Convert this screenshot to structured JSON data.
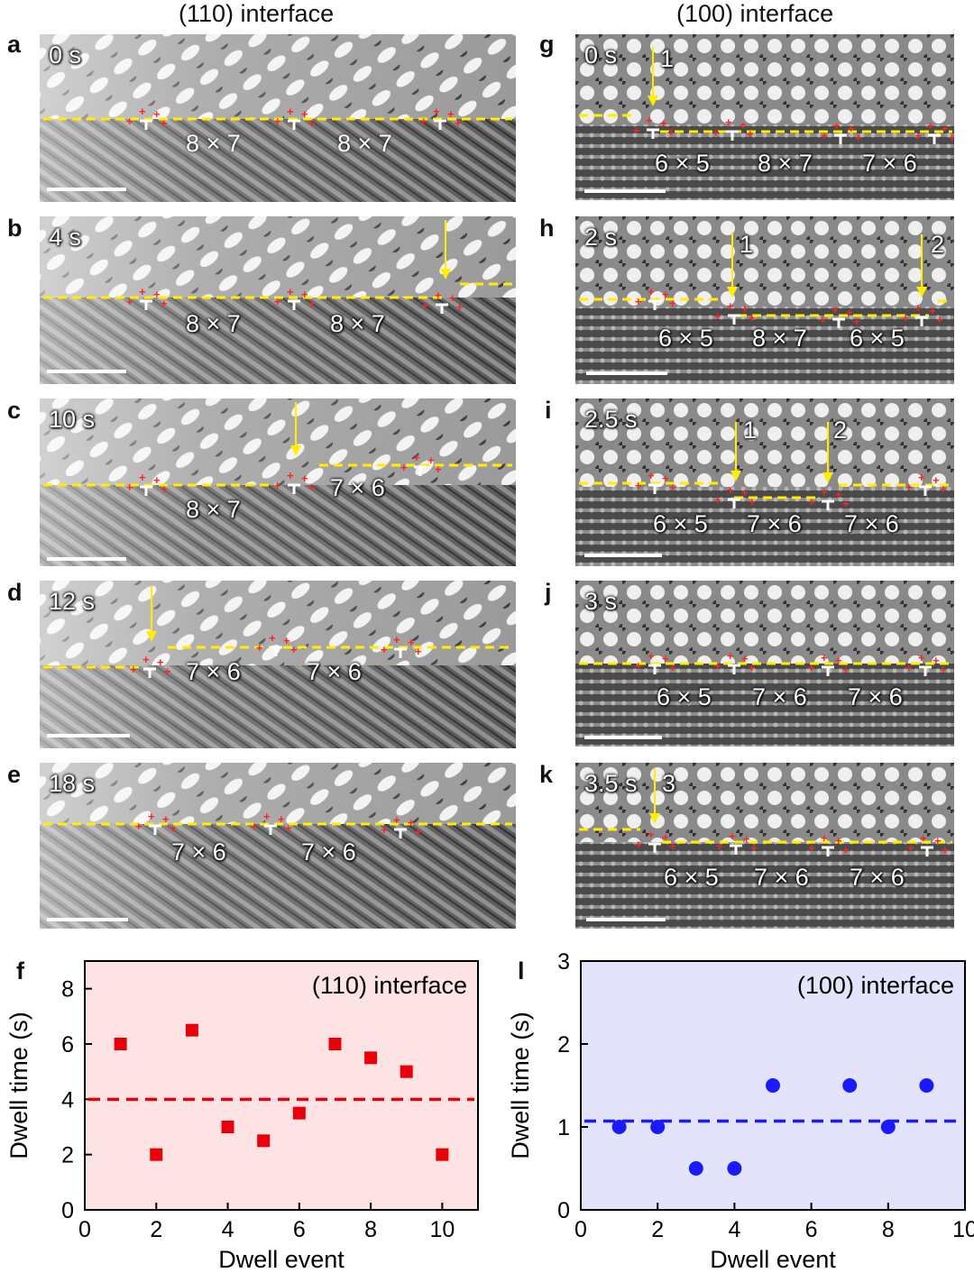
{
  "left_column": {
    "title": "(110) interface",
    "panels": [
      {
        "letter": "a",
        "time": "0 s",
        "labels": [
          "8 × 7",
          "8 × 7"
        ]
      },
      {
        "letter": "b",
        "time": "4 s",
        "labels": [
          "8 × 7",
          "8 × 7"
        ]
      },
      {
        "letter": "c",
        "time": "10 s",
        "labels": [
          "8 × 7",
          "7 × 6"
        ]
      },
      {
        "letter": "d",
        "time": "12 s",
        "labels": [
          "7 × 6",
          "7 × 6"
        ]
      },
      {
        "letter": "e",
        "time": "18 s",
        "labels": [
          "7 × 6",
          "7 × 6"
        ]
      }
    ]
  },
  "right_column": {
    "title": "(100) interface",
    "panels": [
      {
        "letter": "g",
        "time": "0 s",
        "labels": [
          "6 × 5",
          "8 × 7",
          "7 × 6"
        ],
        "arrows": [
          "1"
        ]
      },
      {
        "letter": "h",
        "time": "2 s",
        "labels": [
          "6 × 5",
          "8 × 7",
          "6 × 5"
        ],
        "arrows": [
          "1",
          "2"
        ]
      },
      {
        "letter": "i",
        "time": "2.5 s",
        "labels": [
          "6 × 5",
          "7 × 6",
          "7 × 6"
        ],
        "arrows": [
          "1",
          "2"
        ]
      },
      {
        "letter": "j",
        "time": "3 s",
        "labels": [
          "6 × 5",
          "7 × 6",
          "7 × 6"
        ],
        "arrows": []
      },
      {
        "letter": "k",
        "time": "3.5 s",
        "labels": [
          "6 × 5",
          "7 × 6",
          "7 × 6"
        ],
        "arrows": [
          "3"
        ]
      }
    ]
  },
  "colors": {
    "red": "#e8000b",
    "blue": "#1a1aff",
    "yellow": "#ffee00",
    "pink_bg": "#fde3e3",
    "blue_bg": "#e3e3fb"
  },
  "chart_data": [
    {
      "panel": "f",
      "type": "scatter",
      "title": "(110) interface",
      "xlabel": "Dwell event",
      "ylabel": "Dwell time (s)",
      "xlim": [
        0,
        11
      ],
      "ylim": [
        0,
        9
      ],
      "xticks": [
        "0",
        "2",
        "4",
        "6",
        "8",
        "10"
      ],
      "yticks": [
        "0",
        "2",
        "4",
        "6",
        "8"
      ],
      "marker": "square",
      "x": [
        1,
        2,
        3,
        4,
        5,
        6,
        7,
        8,
        9,
        10
      ],
      "y": [
        6,
        2,
        6.5,
        3,
        2.5,
        3.5,
        6,
        5.5,
        5,
        2
      ],
      "mean_line": 4
    },
    {
      "panel": "l",
      "type": "scatter",
      "title": "(100) interface",
      "xlabel": "Dwell event",
      "ylabel": "Dwell time (s)",
      "xlim": [
        0,
        10
      ],
      "ylim": [
        0,
        3
      ],
      "xticks": [
        "0",
        "2",
        "4",
        "6",
        "8",
        "10"
      ],
      "yticks": [
        "0",
        "1",
        "2",
        "3"
      ],
      "marker": "circle",
      "x": [
        1,
        2,
        3,
        4,
        5,
        7,
        8,
        9
      ],
      "y": [
        1,
        1,
        0.5,
        0.5,
        1.5,
        1.5,
        1,
        1.5
      ],
      "mean_line": 1.07
    }
  ]
}
